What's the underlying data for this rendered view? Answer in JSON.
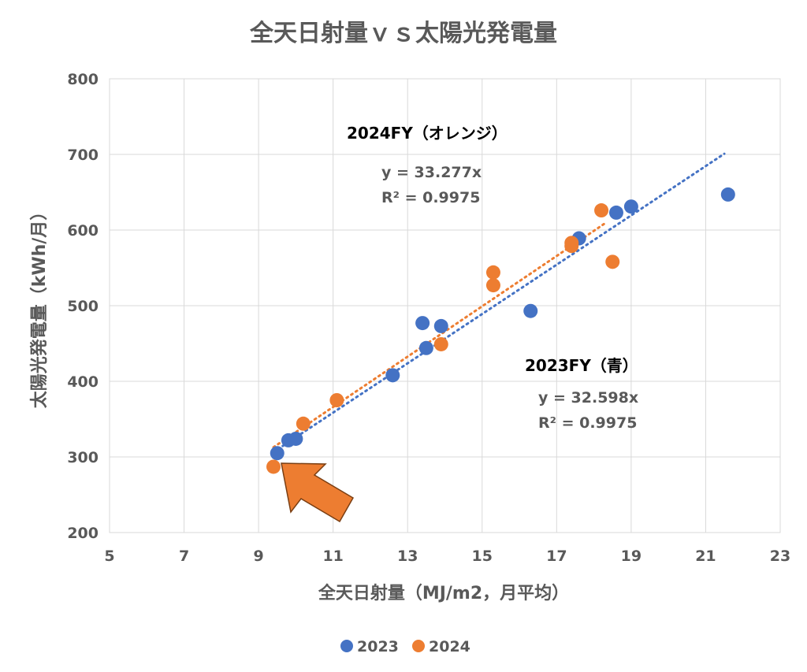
{
  "chart_data": {
    "type": "scatter",
    "title": "全天日射量ｖｓ太陽光発電量",
    "xlabel": "全天日射量（MJ/m2，月平均）",
    "ylabel": "太陽光発電量（kWh/月）",
    "xlim": [
      5,
      23
    ],
    "ylim": [
      200,
      800
    ],
    "xticks": [
      5,
      7,
      9,
      11,
      13,
      15,
      17,
      19,
      21,
      23
    ],
    "yticks": [
      200,
      300,
      400,
      500,
      600,
      700,
      800
    ],
    "x_tick_labels": [
      "5",
      "7",
      "9",
      "11",
      "13",
      "15",
      "17",
      "19",
      "21",
      "23"
    ],
    "y_tick_labels": [
      "200",
      "300",
      "400",
      "500",
      "600",
      "700",
      "800"
    ],
    "grid": true,
    "legend_position": "bottom",
    "series": [
      {
        "name": "2023",
        "color": "#4472C4",
        "points": [
          [
            9.5,
            305
          ],
          [
            9.8,
            322
          ],
          [
            10.0,
            324
          ],
          [
            12.6,
            408
          ],
          [
            13.4,
            477
          ],
          [
            13.5,
            444
          ],
          [
            13.9,
            473
          ],
          [
            16.3,
            493
          ],
          [
            17.6,
            589
          ],
          [
            18.6,
            623
          ],
          [
            19.0,
            631
          ],
          [
            21.6,
            647
          ]
        ],
        "trendline": {
          "slope": 32.598,
          "x_range": [
            9.4,
            21.5
          ]
        }
      },
      {
        "name": "2024",
        "color": "#ED7D31",
        "points": [
          [
            9.4,
            287
          ],
          [
            10.2,
            344
          ],
          [
            11.1,
            375
          ],
          [
            13.9,
            449
          ],
          [
            15.3,
            544
          ],
          [
            15.3,
            527
          ],
          [
            17.4,
            583
          ],
          [
            17.4,
            579
          ],
          [
            18.2,
            626
          ],
          [
            18.5,
            558
          ]
        ],
        "trendline": {
          "slope": 33.277,
          "x_range": [
            9.4,
            18.3
          ]
        }
      }
    ],
    "annotations": {
      "fy2024": {
        "heading": "2024FY（オレンジ）",
        "equation": "y = 33.277x",
        "r_squared": "R² = 0.9975"
      },
      "fy2023": {
        "heading": "2023FY（青）",
        "equation": "y = 32.598x",
        "r_squared": "R² = 0.9975"
      }
    },
    "arrow": {
      "color": "#ED7D31",
      "target": [
        9.4,
        287
      ]
    }
  }
}
